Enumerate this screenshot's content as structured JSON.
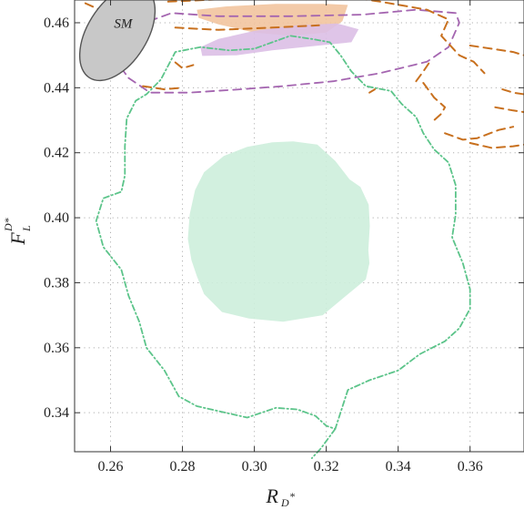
{
  "chart_data": {
    "type": "contour",
    "xlabel": "R",
    "xlabel_sub": "D",
    "xlabel_sup": "*",
    "ylabel": "F",
    "ylabel_sub": "L",
    "ylabel_sup": "D*",
    "xlim": [
      0.25,
      0.375
    ],
    "ylim": [
      0.328,
      0.467
    ],
    "xticks": [
      0.26,
      0.28,
      0.3,
      0.32,
      0.34,
      0.36
    ],
    "yticks": [
      0.34,
      0.36,
      0.38,
      0.4,
      0.42,
      0.44,
      0.46
    ],
    "xtick_labels": [
      "0.26",
      "0.28",
      "0.30",
      "0.32",
      "0.34",
      "0.36"
    ],
    "ytick_labels": [
      "0.34",
      "0.36",
      "0.38",
      "0.40",
      "0.42",
      "0.44",
      "0.46"
    ],
    "grid": true,
    "annotations": [
      {
        "text": "SM",
        "x": 0.2635,
        "y": 0.4585
      }
    ],
    "colors": {
      "sm_fill": "#c8c8c8",
      "green": "#5cc48a",
      "green_fill": "#cdeedb",
      "orange": "#c8701e",
      "orange_fill": "#f2c49e",
      "purple": "#a465b0",
      "purple_fill": "#dcbfe6"
    },
    "series": [
      {
        "style": "ellipse",
        "center": [
          0.2619,
          0.4568
        ],
        "rx": 0.0083,
        "ry": 0.0162,
        "rotation_deg": 32
      },
      {
        "style": "filled",
        "color_key": "green_fill",
        "points": [
          [
            0.3108,
            0.4235
          ],
          [
            0.3175,
            0.4225
          ],
          [
            0.3225,
            0.4175
          ],
          [
            0.3265,
            0.4118
          ],
          [
            0.3295,
            0.4095
          ],
          [
            0.3318,
            0.404
          ],
          [
            0.3321,
            0.3975
          ],
          [
            0.3317,
            0.39
          ],
          [
            0.332,
            0.386
          ],
          [
            0.331,
            0.381
          ],
          [
            0.3255,
            0.376
          ],
          [
            0.319,
            0.37
          ],
          [
            0.308,
            0.368
          ],
          [
            0.2985,
            0.369
          ],
          [
            0.291,
            0.371
          ],
          [
            0.286,
            0.3765
          ],
          [
            0.284,
            0.382
          ],
          [
            0.2825,
            0.387
          ],
          [
            0.2815,
            0.3935
          ],
          [
            0.282,
            0.401
          ],
          [
            0.2835,
            0.4085
          ],
          [
            0.286,
            0.414
          ],
          [
            0.2915,
            0.419
          ],
          [
            0.298,
            0.4218
          ],
          [
            0.305,
            0.4232
          ]
        ]
      },
      {
        "style": "filled",
        "color_key": "orange_fill",
        "points": [
          [
            0.284,
            0.464
          ],
          [
            0.292,
            0.465
          ],
          [
            0.306,
            0.4658
          ],
          [
            0.32,
            0.4658
          ],
          [
            0.326,
            0.4655
          ],
          [
            0.3245,
            0.4605
          ],
          [
            0.32,
            0.457
          ],
          [
            0.31,
            0.456
          ],
          [
            0.3,
            0.457
          ],
          [
            0.29,
            0.4595
          ],
          [
            0.2845,
            0.4615
          ]
        ]
      },
      {
        "style": "filled",
        "color_key": "purple_fill",
        "points": [
          [
            0.285,
            0.4525
          ],
          [
            0.29,
            0.455
          ],
          [
            0.3,
            0.4575
          ],
          [
            0.312,
            0.4592
          ],
          [
            0.323,
            0.4598
          ],
          [
            0.329,
            0.458
          ],
          [
            0.327,
            0.454
          ],
          [
            0.318,
            0.453
          ],
          [
            0.305,
            0.4515
          ],
          [
            0.295,
            0.45
          ],
          [
            0.2855,
            0.4498
          ]
        ]
      },
      {
        "style": "dashdot",
        "color_key": "green",
        "points": [
          [
            0.285,
            0.4525
          ],
          [
            0.278,
            0.451
          ],
          [
            0.274,
            0.4425
          ],
          [
            0.27,
            0.438
          ],
          [
            0.267,
            0.436
          ],
          [
            0.2645,
            0.4305
          ],
          [
            0.264,
            0.422
          ],
          [
            0.264,
            0.413
          ],
          [
            0.263,
            0.408
          ],
          [
            0.258,
            0.406
          ],
          [
            0.256,
            0.399
          ],
          [
            0.258,
            0.391
          ],
          [
            0.263,
            0.384
          ],
          [
            0.265,
            0.376
          ],
          [
            0.268,
            0.368
          ],
          [
            0.27,
            0.36
          ],
          [
            0.275,
            0.353
          ],
          [
            0.279,
            0.345
          ],
          [
            0.284,
            0.342
          ],
          [
            0.29,
            0.3405
          ],
          [
            0.298,
            0.3385
          ],
          [
            0.306,
            0.3415
          ],
          [
            0.312,
            0.341
          ],
          [
            0.317,
            0.339
          ],
          [
            0.32,
            0.336
          ],
          [
            0.3225,
            0.335
          ],
          [
            0.326,
            0.347
          ],
          [
            0.332,
            0.35
          ],
          [
            0.34,
            0.353
          ],
          [
            0.346,
            0.358
          ],
          [
            0.353,
            0.362
          ],
          [
            0.357,
            0.366
          ],
          [
            0.36,
            0.372
          ],
          [
            0.36,
            0.378
          ],
          [
            0.358,
            0.386
          ],
          [
            0.355,
            0.394
          ],
          [
            0.356,
            0.401
          ],
          [
            0.356,
            0.41
          ],
          [
            0.354,
            0.417
          ],
          [
            0.35,
            0.421
          ],
          [
            0.347,
            0.426
          ],
          [
            0.345,
            0.431
          ],
          [
            0.341,
            0.435
          ],
          [
            0.338,
            0.439
          ],
          [
            0.331,
            0.4405
          ],
          [
            0.327,
            0.445
          ],
          [
            0.324,
            0.45
          ],
          [
            0.321,
            0.454
          ],
          [
            0.316,
            0.455
          ],
          [
            0.31,
            0.456
          ],
          [
            0.305,
            0.454
          ],
          [
            0.3,
            0.452
          ],
          [
            0.293,
            0.4515
          ],
          [
            0.285,
            0.4525
          ]
        ]
      },
      {
        "style": "dashdot-tail",
        "color_key": "green",
        "points": [
          [
            0.3225,
            0.335
          ],
          [
            0.3205,
            0.332
          ],
          [
            0.3185,
            0.329
          ],
          [
            0.316,
            0.326
          ]
        ]
      },
      {
        "style": "dashed",
        "color_key": "purple",
        "points": [
          [
            0.265,
            0.443
          ],
          [
            0.271,
            0.4385
          ],
          [
            0.282,
            0.4385
          ],
          [
            0.296,
            0.4395
          ],
          [
            0.308,
            0.4405
          ],
          [
            0.322,
            0.442
          ],
          [
            0.335,
            0.4445
          ],
          [
            0.348,
            0.448
          ],
          [
            0.354,
            0.4525
          ],
          [
            0.357,
            0.46
          ],
          [
            0.356,
            0.463
          ],
          [
            0.345,
            0.464
          ],
          [
            0.33,
            0.4625
          ],
          [
            0.31,
            0.462
          ],
          [
            0.29,
            0.462
          ],
          [
            0.277,
            0.463
          ],
          [
            0.272,
            0.461
          ],
          [
            0.265,
            0.456
          ],
          [
            0.262,
            0.45
          ],
          [
            0.263,
            0.446
          ],
          [
            0.265,
            0.443
          ]
        ]
      },
      {
        "style": "dashed",
        "color_key": "orange",
        "points": [
          [
            0.253,
            0.466
          ],
          [
            0.257,
            0.464
          ],
          [
            0.262,
            0.462
          ],
          [
            0.266,
            0.46
          ]
        ]
      },
      {
        "style": "dashed",
        "color_key": "orange",
        "points": [
          [
            0.276,
            0.4665
          ],
          [
            0.29,
            0.4672
          ],
          [
            0.305,
            0.468
          ],
          [
            0.32,
            0.469
          ],
          [
            0.335,
            0.4665
          ],
          [
            0.348,
            0.464
          ],
          [
            0.354,
            0.461
          ],
          [
            0.352,
            0.456
          ],
          [
            0.357,
            0.45
          ],
          [
            0.361,
            0.448
          ],
          [
            0.364,
            0.4445
          ]
        ]
      },
      {
        "style": "dashed",
        "color_key": "orange",
        "points": [
          [
            0.278,
            0.4585
          ],
          [
            0.29,
            0.4578
          ],
          [
            0.305,
            0.4585
          ],
          [
            0.318,
            0.4592
          ]
        ]
      },
      {
        "style": "dashed",
        "color_key": "orange",
        "points": [
          [
            0.347,
            0.4415
          ],
          [
            0.35,
            0.437
          ],
          [
            0.353,
            0.434
          ],
          [
            0.352,
            0.432
          ],
          [
            0.35,
            0.43
          ]
        ]
      },
      {
        "style": "dashed",
        "color_key": "orange",
        "points": [
          [
            0.353,
            0.426
          ],
          [
            0.358,
            0.424
          ],
          [
            0.362,
            0.4245
          ],
          [
            0.368,
            0.427
          ],
          [
            0.372,
            0.428
          ]
        ]
      },
      {
        "style": "dashed",
        "color_key": "orange",
        "points": [
          [
            0.36,
            0.423
          ],
          [
            0.366,
            0.4215
          ],
          [
            0.372,
            0.422
          ],
          [
            0.375,
            0.4225
          ]
        ]
      },
      {
        "style": "dashed",
        "color_key": "orange",
        "points": [
          [
            0.36,
            0.453
          ],
          [
            0.366,
            0.452
          ],
          [
            0.372,
            0.451
          ],
          [
            0.375,
            0.45
          ]
        ]
      },
      {
        "style": "dashed",
        "color_key": "orange",
        "points": [
          [
            0.369,
            0.4395
          ],
          [
            0.372,
            0.4385
          ],
          [
            0.375,
            0.438
          ]
        ]
      },
      {
        "style": "dashed",
        "color_key": "orange",
        "points": [
          [
            0.367,
            0.434
          ],
          [
            0.372,
            0.433
          ],
          [
            0.375,
            0.4325
          ]
        ]
      },
      {
        "style": "dashed",
        "color_key": "orange",
        "points": [
          [
            0.345,
            0.442
          ],
          [
            0.347,
            0.445
          ],
          [
            0.3485,
            0.4475
          ]
        ]
      },
      {
        "style": "dashed",
        "color_key": "orange",
        "points": [
          [
            0.332,
            0.4385
          ],
          [
            0.3335,
            0.4395
          ]
        ]
      },
      {
        "style": "dashed",
        "color_key": "orange",
        "points": [
          [
            0.269,
            0.4405
          ],
          [
            0.275,
            0.4395
          ],
          [
            0.28,
            0.44
          ]
        ]
      },
      {
        "style": "dashed",
        "color_key": "orange",
        "points": [
          [
            0.278,
            0.4478
          ],
          [
            0.28,
            0.446
          ],
          [
            0.283,
            0.447
          ]
        ]
      }
    ]
  }
}
